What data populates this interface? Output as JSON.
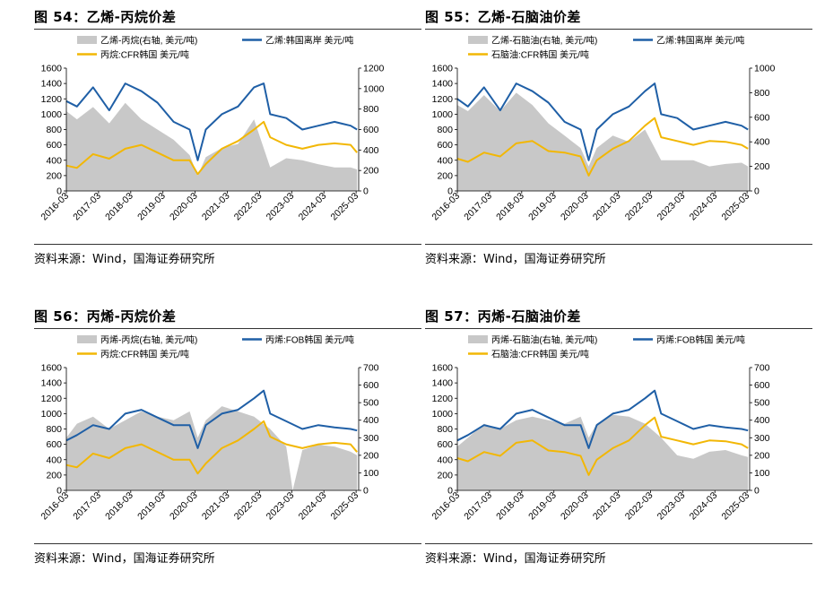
{
  "source_label": "资料来源：Wind，国海证券研究所",
  "colors": {
    "spread": "#c8c8c8",
    "blue": "#1f5fa6",
    "yellow": "#f2b705"
  },
  "chart_data": [
    {
      "title": "图 54：乙烯-丙烷价差",
      "type": "area",
      "x_categories": [
        "2016-03",
        "2017-03",
        "2018-03",
        "2019-03",
        "2020-03",
        "2021-03",
        "2022-03",
        "2023-03",
        "2024-03",
        "2025-03"
      ],
      "ylim_left": [
        0,
        1600
      ],
      "yticks_left": [
        "0",
        "200",
        "400",
        "600",
        "800",
        "1000",
        "1200",
        "1400",
        "1600"
      ],
      "ylim_right": [
        0,
        1200
      ],
      "yticks_right": [
        "0",
        "200",
        "400",
        "600",
        "800",
        "1000",
        "1200"
      ],
      "legend": [
        "乙烯-丙烷(右轴, 美元/吨)",
        "乙烯:韩国离岸 美元/吨",
        "丙烷:CFR韩国 美元/吨"
      ],
      "grid": false,
      "series": [
        {
          "name": "乙烯-丙烷(右轴, 美元/吨)",
          "axis": "right",
          "kind": "area",
          "x": [
            2016.17,
            2016.5,
            2017.0,
            2017.5,
            2018.0,
            2018.5,
            2019.0,
            2019.5,
            2020.0,
            2020.25,
            2020.5,
            2021.0,
            2021.5,
            2022.0,
            2022.5,
            2023.0,
            2023.5,
            2024.0,
            2024.5,
            2025.0,
            2025.2
          ],
          "y": [
            780,
            700,
            820,
            660,
            860,
            700,
            600,
            500,
            350,
            150,
            330,
            420,
            460,
            700,
            230,
            320,
            300,
            260,
            230,
            230,
            210
          ]
        },
        {
          "name": "乙烯:韩国离岸 美元/吨",
          "axis": "left",
          "kind": "line",
          "x": [
            2016.17,
            2016.5,
            2017.0,
            2017.5,
            2018.0,
            2018.5,
            2019.0,
            2019.5,
            2020.0,
            2020.25,
            2020.5,
            2021.0,
            2021.5,
            2022.0,
            2022.3,
            2022.5,
            2023.0,
            2023.5,
            2024.0,
            2024.5,
            2025.0,
            2025.2
          ],
          "y": [
            1170,
            1100,
            1350,
            1050,
            1400,
            1300,
            1150,
            900,
            800,
            400,
            800,
            1000,
            1100,
            1350,
            1400,
            1000,
            950,
            800,
            850,
            900,
            850,
            800
          ]
        },
        {
          "name": "丙烷:CFR韩国 美元/吨",
          "axis": "left",
          "kind": "line",
          "x": [
            2016.17,
            2016.5,
            2017.0,
            2017.5,
            2018.0,
            2018.5,
            2019.0,
            2019.5,
            2020.0,
            2020.25,
            2020.5,
            2021.0,
            2021.5,
            2022.0,
            2022.3,
            2022.5,
            2023.0,
            2023.5,
            2024.0,
            2024.5,
            2025.0,
            2025.2
          ],
          "y": [
            330,
            300,
            480,
            420,
            550,
            600,
            500,
            400,
            400,
            220,
            350,
            550,
            650,
            800,
            900,
            700,
            600,
            550,
            600,
            620,
            600,
            500
          ]
        }
      ]
    },
    {
      "title": "图 55：乙烯-石脑油价差",
      "type": "area",
      "x_categories": [
        "2016-03",
        "2017-03",
        "2018-03",
        "2019-03",
        "2020-03",
        "2021-03",
        "2022-03",
        "2023-03",
        "2024-03",
        "2025-03"
      ],
      "ylim_left": [
        0,
        1600
      ],
      "yticks_left": [
        "0",
        "200",
        "400",
        "600",
        "800",
        "1000",
        "1200",
        "1400",
        "1600"
      ],
      "ylim_right": [
        0,
        1000
      ],
      "yticks_right": [
        "0",
        "200",
        "400",
        "600",
        "800",
        "1000"
      ],
      "legend": [
        "乙烯-石脑油(右轴, 美元/吨)",
        "乙烯:韩国离岸 美元/吨",
        "石脑油:CFR韩国 美元/吨"
      ],
      "grid": false,
      "series": [
        {
          "name": "乙烯-石脑油(右轴, 美元/吨)",
          "axis": "right",
          "kind": "area",
          "x": [
            2016.17,
            2016.5,
            2017.0,
            2017.5,
            2018.0,
            2018.5,
            2019.0,
            2019.5,
            2020.0,
            2020.25,
            2020.5,
            2021.0,
            2021.5,
            2022.0,
            2022.5,
            2023.0,
            2023.5,
            2024.0,
            2024.5,
            2025.0,
            2025.2
          ],
          "y": [
            700,
            650,
            780,
            650,
            800,
            700,
            550,
            450,
            350,
            200,
            350,
            450,
            400,
            500,
            250,
            250,
            250,
            200,
            220,
            230,
            200
          ]
        },
        {
          "name": "乙烯:韩国离岸 美元/吨",
          "axis": "left",
          "kind": "line",
          "x": [
            2016.17,
            2016.5,
            2017.0,
            2017.5,
            2018.0,
            2018.5,
            2019.0,
            2019.5,
            2020.0,
            2020.25,
            2020.5,
            2021.0,
            2021.5,
            2022.0,
            2022.3,
            2022.5,
            2023.0,
            2023.5,
            2024.0,
            2024.5,
            2025.0,
            2025.2
          ],
          "y": [
            1200,
            1100,
            1350,
            1050,
            1400,
            1300,
            1150,
            900,
            800,
            400,
            800,
            1000,
            1100,
            1300,
            1400,
            1000,
            950,
            800,
            850,
            900,
            850,
            800
          ]
        },
        {
          "name": "石脑油:CFR韩国 美元/吨",
          "axis": "left",
          "kind": "line",
          "x": [
            2016.17,
            2016.5,
            2017.0,
            2017.5,
            2018.0,
            2018.5,
            2019.0,
            2019.5,
            2020.0,
            2020.25,
            2020.5,
            2021.0,
            2021.5,
            2022.0,
            2022.3,
            2022.5,
            2023.0,
            2023.5,
            2024.0,
            2024.5,
            2025.0,
            2025.2
          ],
          "y": [
            420,
            380,
            500,
            450,
            620,
            650,
            520,
            500,
            450,
            200,
            400,
            550,
            650,
            850,
            950,
            700,
            650,
            600,
            650,
            640,
            600,
            550
          ]
        }
      ]
    },
    {
      "title": "图 56：丙烯-丙烷价差",
      "type": "area",
      "x_categories": [
        "2016-03",
        "2017-03",
        "2018-03",
        "2019-03",
        "2020-03",
        "2021-03",
        "2022-03",
        "2023-03",
        "2024-03",
        "2025-03"
      ],
      "ylim_left": [
        0,
        1600
      ],
      "yticks_left": [
        "0",
        "200",
        "400",
        "600",
        "800",
        "1000",
        "1200",
        "1400",
        "1600"
      ],
      "ylim_right": [
        0,
        700
      ],
      "yticks_right": [
        "0",
        "100",
        "200",
        "300",
        "400",
        "500",
        "600",
        "700"
      ],
      "legend": [
        "丙烯-丙烷(右轴, 美元/吨)",
        "丙烯:FOB韩国 美元/吨",
        "丙烷:CFR韩国 美元/吨"
      ],
      "grid": false,
      "series": [
        {
          "name": "丙烯-丙烷(右轴, 美元/吨)",
          "axis": "right",
          "kind": "area",
          "x": [
            2016.17,
            2016.5,
            2017.0,
            2017.5,
            2018.0,
            2018.5,
            2019.0,
            2019.5,
            2020.0,
            2020.25,
            2020.5,
            2021.0,
            2021.5,
            2022.0,
            2022.5,
            2023.0,
            2023.2,
            2023.5,
            2024.0,
            2024.5,
            2025.0,
            2025.2
          ],
          "y": [
            300,
            380,
            420,
            350,
            400,
            450,
            420,
            400,
            450,
            300,
            400,
            480,
            450,
            420,
            350,
            250,
            0,
            230,
            260,
            250,
            220,
            200
          ]
        },
        {
          "name": "丙烯:FOB韩国 美元/吨",
          "axis": "left",
          "kind": "line",
          "x": [
            2016.17,
            2016.5,
            2017.0,
            2017.5,
            2018.0,
            2018.5,
            2019.0,
            2019.5,
            2020.0,
            2020.25,
            2020.5,
            2021.0,
            2021.5,
            2022.0,
            2022.3,
            2022.5,
            2023.0,
            2023.5,
            2024.0,
            2024.5,
            2025.0,
            2025.2
          ],
          "y": [
            650,
            720,
            850,
            800,
            1000,
            1050,
            950,
            850,
            850,
            550,
            850,
            1000,
            1050,
            1200,
            1300,
            1000,
            900,
            800,
            850,
            820,
            800,
            780
          ]
        },
        {
          "name": "丙烷:CFR韩国 美元/吨",
          "axis": "left",
          "kind": "line",
          "x": [
            2016.17,
            2016.5,
            2017.0,
            2017.5,
            2018.0,
            2018.5,
            2019.0,
            2019.5,
            2020.0,
            2020.25,
            2020.5,
            2021.0,
            2021.5,
            2022.0,
            2022.3,
            2022.5,
            2023.0,
            2023.5,
            2024.0,
            2024.5,
            2025.0,
            2025.2
          ],
          "y": [
            330,
            300,
            480,
            420,
            550,
            600,
            500,
            400,
            400,
            220,
            350,
            550,
            650,
            800,
            900,
            700,
            600,
            550,
            600,
            620,
            600,
            500
          ]
        }
      ]
    },
    {
      "title": "图 57：丙烯-石脑油价差",
      "type": "area",
      "x_categories": [
        "2016-03",
        "2017-03",
        "2018-03",
        "2019-03",
        "2020-03",
        "2021-03",
        "2022-03",
        "2023-03",
        "2024-03",
        "2025-03"
      ],
      "ylim_left": [
        0,
        1600
      ],
      "yticks_left": [
        "0",
        "200",
        "400",
        "600",
        "800",
        "1000",
        "1200",
        "1400",
        "1600"
      ],
      "ylim_right": [
        0,
        700
      ],
      "yticks_right": [
        "0",
        "100",
        "200",
        "300",
        "400",
        "500",
        "600",
        "700"
      ],
      "legend": [
        "丙烯-石脑油(右轴, 美元/吨)",
        "丙烯:FOB韩国 美元/吨",
        "石脑油:CFR韩国 美元/吨"
      ],
      "grid": false,
      "series": [
        {
          "name": "丙烯-石脑油(右轴, 美元/吨)",
          "axis": "right",
          "kind": "area",
          "x": [
            2016.17,
            2016.5,
            2017.0,
            2017.5,
            2018.0,
            2018.5,
            2019.0,
            2019.5,
            2020.0,
            2020.25,
            2020.5,
            2021.0,
            2021.5,
            2022.0,
            2022.5,
            2023.0,
            2023.5,
            2024.0,
            2024.5,
            2025.0,
            2025.2
          ],
          "y": [
            250,
            300,
            380,
            350,
            400,
            420,
            400,
            380,
            420,
            300,
            380,
            430,
            420,
            380,
            300,
            200,
            180,
            220,
            230,
            200,
            190
          ]
        },
        {
          "name": "丙烯:FOB韩国 美元/吨",
          "axis": "left",
          "kind": "line",
          "x": [
            2016.17,
            2016.5,
            2017.0,
            2017.5,
            2018.0,
            2018.5,
            2019.0,
            2019.5,
            2020.0,
            2020.25,
            2020.5,
            2021.0,
            2021.5,
            2022.0,
            2022.3,
            2022.5,
            2023.0,
            2023.5,
            2024.0,
            2024.5,
            2025.0,
            2025.2
          ],
          "y": [
            650,
            720,
            850,
            800,
            1000,
            1050,
            950,
            850,
            850,
            550,
            850,
            1000,
            1050,
            1200,
            1300,
            1000,
            900,
            800,
            850,
            820,
            800,
            780
          ]
        },
        {
          "name": "石脑油:CFR韩国 美元/吨",
          "axis": "left",
          "kind": "line",
          "x": [
            2016.17,
            2016.5,
            2017.0,
            2017.5,
            2018.0,
            2018.5,
            2019.0,
            2019.5,
            2020.0,
            2020.25,
            2020.5,
            2021.0,
            2021.5,
            2022.0,
            2022.3,
            2022.5,
            2023.0,
            2023.5,
            2024.0,
            2024.5,
            2025.0,
            2025.2
          ],
          "y": [
            420,
            380,
            500,
            450,
            620,
            650,
            520,
            500,
            450,
            200,
            400,
            550,
            650,
            850,
            950,
            700,
            650,
            600,
            650,
            640,
            600,
            550
          ]
        }
      ]
    }
  ]
}
